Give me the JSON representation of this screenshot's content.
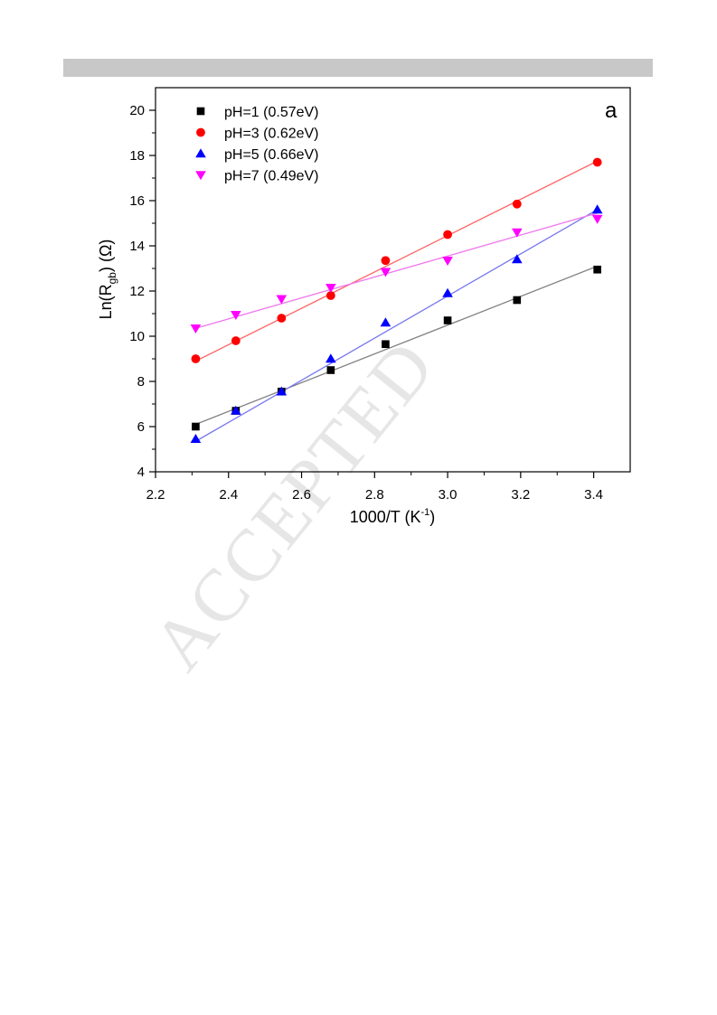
{
  "page": {
    "watermark": "ACCEPTED"
  },
  "chart_data": {
    "type": "scatter",
    "panel_label": "a",
    "xlabel": {
      "main": "1000/T (K",
      "sup": "-1",
      "tail": ")"
    },
    "ylabel": {
      "main": "Ln(R",
      "sub": "gb",
      "tail": ") (Ω)"
    },
    "xlim": [
      2.2,
      3.5
    ],
    "ylim": [
      4,
      21
    ],
    "xticks": [
      2.2,
      2.4,
      2.6,
      2.8,
      3.0,
      3.2,
      3.4
    ],
    "xtick_labels": [
      "2.2",
      "2.4",
      "2.6",
      "2.8",
      "3.0",
      "3.2",
      "3.4"
    ],
    "yticks": [
      4,
      6,
      8,
      10,
      12,
      14,
      16,
      18,
      20
    ],
    "ytick_labels": [
      "4",
      "6",
      "8",
      "10",
      "12",
      "14",
      "16",
      "18",
      "20"
    ],
    "grid": false,
    "legend_position": "top-left",
    "series": [
      {
        "name": "pH=1 (0.57eV)",
        "marker": "square",
        "color": "#000000",
        "line_color": "#808080",
        "x": [
          2.31,
          2.42,
          2.545,
          2.68,
          2.83,
          3.0,
          3.19,
          3.41
        ],
        "y": [
          6.0,
          6.7,
          7.55,
          8.5,
          9.65,
          10.7,
          11.6,
          12.95
        ],
        "fit": [
          [
            2.31,
            6.1
          ],
          [
            3.41,
            13.1
          ]
        ]
      },
      {
        "name": "pH=3 (0.62eV)",
        "marker": "circle",
        "color": "#ff0000",
        "line_color": "#ff6666",
        "x": [
          2.31,
          2.42,
          2.545,
          2.68,
          2.83,
          3.0,
          3.19,
          3.41
        ],
        "y": [
          9.0,
          9.8,
          10.8,
          11.8,
          13.35,
          14.5,
          15.85,
          17.7
        ],
        "fit": [
          [
            2.31,
            8.9
          ],
          [
            3.41,
            17.75
          ]
        ]
      },
      {
        "name": "pH=5 (0.66eV)",
        "marker": "triangle-up",
        "color": "#0000ff",
        "line_color": "#7777ee",
        "x": [
          2.31,
          2.42,
          2.545,
          2.68,
          2.83,
          3.0,
          3.19,
          3.41
        ],
        "y": [
          5.45,
          6.7,
          7.55,
          9.0,
          10.6,
          11.9,
          13.4,
          15.6
        ],
        "fit": [
          [
            2.31,
            5.35
          ],
          [
            3.41,
            15.6
          ]
        ]
      },
      {
        "name": "pH=7 (0.49eV)",
        "marker": "triangle-down",
        "color": "#ff00ff",
        "line_color": "#ee77ee",
        "x": [
          2.31,
          2.42,
          2.545,
          2.68,
          2.83,
          3.0,
          3.19,
          3.41
        ],
        "y": [
          10.35,
          10.95,
          11.65,
          12.15,
          12.85,
          13.35,
          14.6,
          15.2
        ],
        "fit": [
          [
            2.31,
            10.35
          ],
          [
            3.41,
            15.45
          ]
        ]
      }
    ]
  }
}
